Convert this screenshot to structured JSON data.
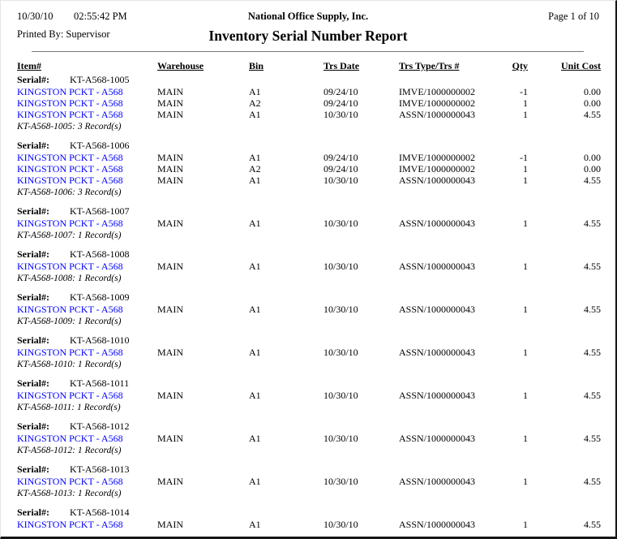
{
  "header": {
    "date": "10/30/10",
    "time": "02:55:42 PM",
    "company": "National Office Supply, Inc.",
    "page_label": "Page 1 of 10",
    "printed_by": "Printed By: Supervisor",
    "title": "Inventory Serial Number Report"
  },
  "colors": {
    "link": "#0000ff",
    "text": "#000000",
    "rule": "#787878"
  },
  "table": {
    "serial_label": "Serial#:",
    "columns": [
      "Item#",
      "Warehouse",
      "Bin",
      "Trs Date",
      "Trs Type/Trs #",
      "Qty",
      "Unit Cost"
    ],
    "groups": [
      {
        "serial": "KT-A568-1005",
        "rows": [
          {
            "item": "KINGSTON PCKT - A568",
            "warehouse": "MAIN",
            "bin": "A1",
            "trs_date": "09/24/10",
            "trs_type": "IMVE/1000000002",
            "qty": "-1",
            "unit_cost": "0.00"
          },
          {
            "item": "KINGSTON PCKT - A568",
            "warehouse": "MAIN",
            "bin": "A2",
            "trs_date": "09/24/10",
            "trs_type": "IMVE/1000000002",
            "qty": "1",
            "unit_cost": "0.00"
          },
          {
            "item": "KINGSTON PCKT - A568",
            "warehouse": "MAIN",
            "bin": "A1",
            "trs_date": "10/30/10",
            "trs_type": "ASSN/1000000043",
            "qty": "1",
            "unit_cost": "4.55"
          }
        ],
        "summary": "KT-A568-1005: 3 Record(s)"
      },
      {
        "serial": "KT-A568-1006",
        "rows": [
          {
            "item": "KINGSTON PCKT - A568",
            "warehouse": "MAIN",
            "bin": "A1",
            "trs_date": "09/24/10",
            "trs_type": "IMVE/1000000002",
            "qty": "-1",
            "unit_cost": "0.00"
          },
          {
            "item": "KINGSTON PCKT - A568",
            "warehouse": "MAIN",
            "bin": "A2",
            "trs_date": "09/24/10",
            "trs_type": "IMVE/1000000002",
            "qty": "1",
            "unit_cost": "0.00"
          },
          {
            "item": "KINGSTON PCKT - A568",
            "warehouse": "MAIN",
            "bin": "A1",
            "trs_date": "10/30/10",
            "trs_type": "ASSN/1000000043",
            "qty": "1",
            "unit_cost": "4.55"
          }
        ],
        "summary": "KT-A568-1006: 3 Record(s)"
      },
      {
        "serial": "KT-A568-1007",
        "rows": [
          {
            "item": "KINGSTON PCKT - A568",
            "warehouse": "MAIN",
            "bin": "A1",
            "trs_date": "10/30/10",
            "trs_type": "ASSN/1000000043",
            "qty": "1",
            "unit_cost": "4.55"
          }
        ],
        "summary": "KT-A568-1007: 1 Record(s)"
      },
      {
        "serial": "KT-A568-1008",
        "rows": [
          {
            "item": "KINGSTON PCKT - A568",
            "warehouse": "MAIN",
            "bin": "A1",
            "trs_date": "10/30/10",
            "trs_type": "ASSN/1000000043",
            "qty": "1",
            "unit_cost": "4.55"
          }
        ],
        "summary": "KT-A568-1008: 1 Record(s)"
      },
      {
        "serial": "KT-A568-1009",
        "rows": [
          {
            "item": "KINGSTON PCKT - A568",
            "warehouse": "MAIN",
            "bin": "A1",
            "trs_date": "10/30/10",
            "trs_type": "ASSN/1000000043",
            "qty": "1",
            "unit_cost": "4.55"
          }
        ],
        "summary": "KT-A568-1009: 1 Record(s)"
      },
      {
        "serial": "KT-A568-1010",
        "rows": [
          {
            "item": "KINGSTON PCKT - A568",
            "warehouse": "MAIN",
            "bin": "A1",
            "trs_date": "10/30/10",
            "trs_type": "ASSN/1000000043",
            "qty": "1",
            "unit_cost": "4.55"
          }
        ],
        "summary": "KT-A568-1010: 1 Record(s)"
      },
      {
        "serial": "KT-A568-1011",
        "rows": [
          {
            "item": "KINGSTON PCKT - A568",
            "warehouse": "MAIN",
            "bin": "A1",
            "trs_date": "10/30/10",
            "trs_type": "ASSN/1000000043",
            "qty": "1",
            "unit_cost": "4.55"
          }
        ],
        "summary": "KT-A568-1011: 1 Record(s)"
      },
      {
        "serial": "KT-A568-1012",
        "rows": [
          {
            "item": "KINGSTON PCKT - A568",
            "warehouse": "MAIN",
            "bin": "A1",
            "trs_date": "10/30/10",
            "trs_type": "ASSN/1000000043",
            "qty": "1",
            "unit_cost": "4.55"
          }
        ],
        "summary": "KT-A568-1012: 1 Record(s)"
      },
      {
        "serial": "KT-A568-1013",
        "rows": [
          {
            "item": "KINGSTON PCKT - A568",
            "warehouse": "MAIN",
            "bin": "A1",
            "trs_date": "10/30/10",
            "trs_type": "ASSN/1000000043",
            "qty": "1",
            "unit_cost": "4.55"
          }
        ],
        "summary": "KT-A568-1013: 1 Record(s)"
      },
      {
        "serial": "KT-A568-1014",
        "rows": [
          {
            "item": "KINGSTON PCKT - A568",
            "warehouse": "MAIN",
            "bin": "A1",
            "trs_date": "10/30/10",
            "trs_type": "ASSN/1000000043",
            "qty": "1",
            "unit_cost": "4.55"
          }
        ],
        "summary": ""
      }
    ]
  }
}
